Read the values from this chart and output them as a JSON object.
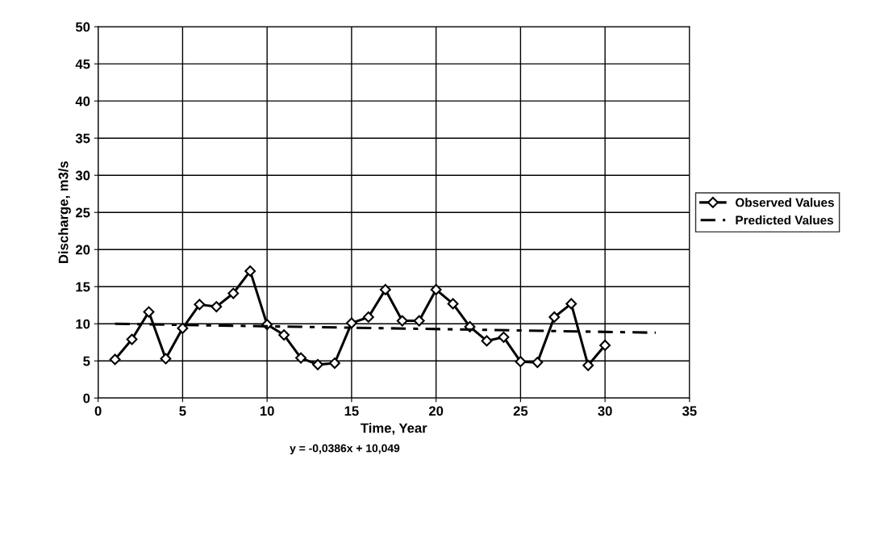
{
  "chart_data": {
    "type": "line",
    "xlabel": "Time, Year",
    "ylabel": "Discharge, m3/s",
    "xlim": [
      0,
      35
    ],
    "xticks": [
      0,
      5,
      10,
      15,
      20,
      25,
      30,
      35
    ],
    "ylim": [
      0,
      50
    ],
    "yticks": [
      0,
      5,
      10,
      15,
      20,
      25,
      30,
      35,
      40,
      45,
      50
    ],
    "grid": true,
    "legend": "right",
    "series": [
      {
        "name": "Observed Values",
        "color": "#000000",
        "marker": "diamond",
        "line_style": "solid",
        "x": [
          1,
          2,
          3,
          4,
          5,
          6,
          7,
          8,
          9,
          10,
          11,
          12,
          13,
          14,
          15,
          16,
          17,
          18,
          19,
          20,
          21,
          22,
          23,
          24,
          25,
          26,
          27,
          28,
          29,
          30
        ],
        "values": [
          5.2,
          7.9,
          11.6,
          5.3,
          9.4,
          12.6,
          12.3,
          14.1,
          17.1,
          9.9,
          8.5,
          5.4,
          4.5,
          4.7,
          10.1,
          10.9,
          14.6,
          10.4,
          10.4,
          14.6,
          12.7,
          9.6,
          7.7,
          8.2,
          4.9,
          4.8,
          10.9,
          12.7,
          4.4,
          7.1
        ]
      },
      {
        "name": "Predicted Values",
        "color": "#000000",
        "marker": "none",
        "line_style": "dashed",
        "x": [
          1,
          33
        ],
        "values": [
          10.0,
          8.8
        ]
      }
    ],
    "annotations": [
      "y = -0,0386x + 10,049"
    ]
  }
}
